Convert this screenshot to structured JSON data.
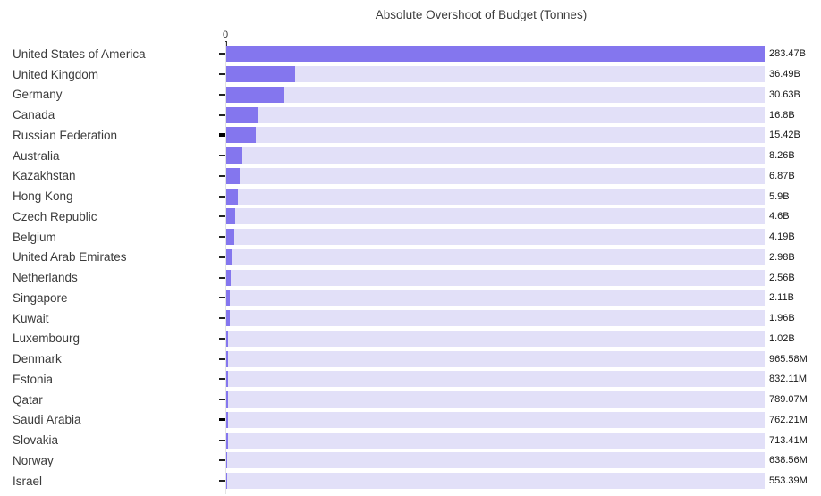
{
  "title": "Absolute Overshoot of Budget (Tonnes)",
  "axis": {
    "zero_label": "0"
  },
  "colors": {
    "bar_fill": "#8476ee",
    "bar_track": "#e2e0f8",
    "title_text": "#3c3c3c",
    "label_text": "#3b3b3b",
    "value_text": "#161616",
    "tick": "#222222",
    "axis_line": "#e3e3e3"
  },
  "chart_data": {
    "type": "bar",
    "orientation": "horizontal",
    "title": "Absolute Overshoot of Budget (Tonnes)",
    "unit": "Tonnes",
    "value_scale": "billions",
    "xlim_billions": [
      0,
      283.47
    ],
    "x_tick_labels": [
      "0"
    ],
    "grid": false,
    "legend": false,
    "sort": "descending",
    "categories": [
      "United States of America",
      "United Kingdom",
      "Germany",
      "Canada",
      "Russian Federation",
      "Australia",
      "Kazakhstan",
      "Hong Kong",
      "Czech Republic",
      "Belgium",
      "United Arab Emirates",
      "Netherlands",
      "Singapore",
      "Kuwait",
      "Luxembourg",
      "Denmark",
      "Estonia",
      "Qatar",
      "Saudi Arabia",
      "Slovakia",
      "Norway",
      "Israel"
    ],
    "values_billions": [
      283.47,
      36.49,
      30.63,
      16.8,
      15.42,
      8.26,
      6.87,
      5.9,
      4.6,
      4.19,
      2.98,
      2.56,
      2.11,
      1.96,
      1.02,
      0.96558,
      0.83211,
      0.78907,
      0.76221,
      0.71341,
      0.63856,
      0.55339
    ],
    "value_labels": [
      "283.47B",
      "36.49B",
      "30.63B",
      "16.8B",
      "15.42B",
      "8.26B",
      "6.87B",
      "5.9B",
      "4.6B",
      "4.19B",
      "2.98B",
      "2.56B",
      "2.11B",
      "1.96B",
      "1.02B",
      "965.58M",
      "832.11M",
      "789.07M",
      "762.21M",
      "713.41M",
      "638.56M",
      "553.39M"
    ],
    "emphasized_tick_indices": [
      4,
      18
    ]
  }
}
